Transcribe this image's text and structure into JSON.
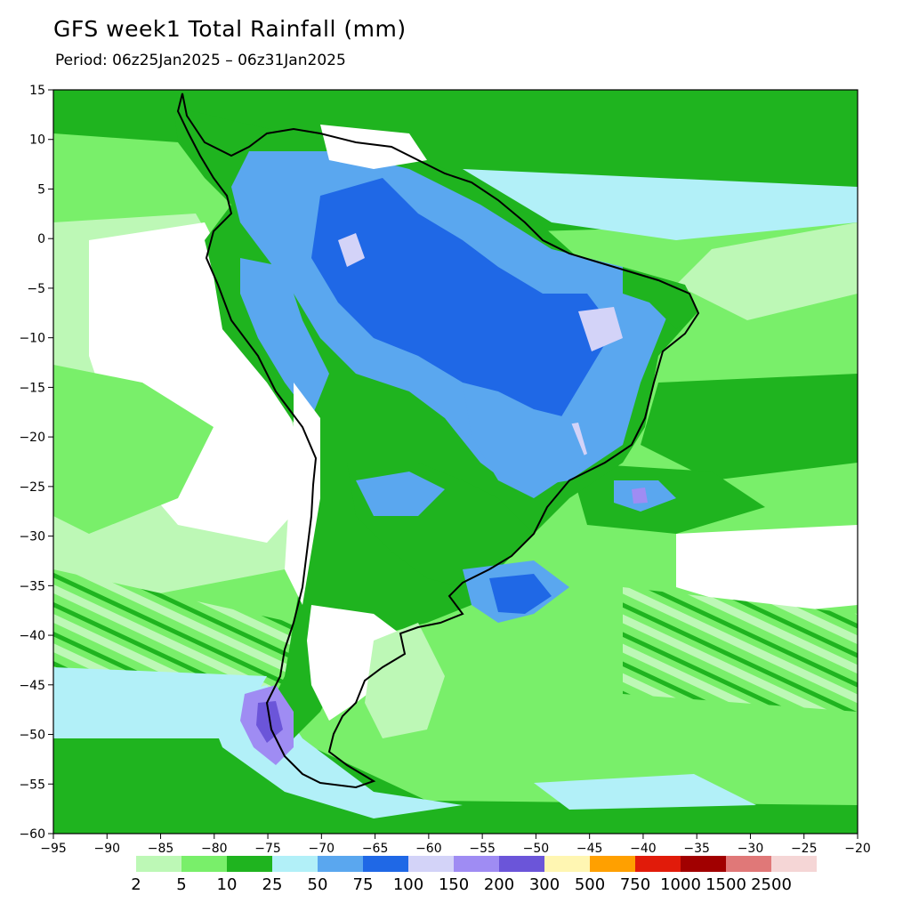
{
  "title": "GFS week1 Total Rainfall (mm)",
  "subtitle": "Period: 06z25Jan2025 – 06z31Jan2025",
  "map": {
    "lon_range": [
      -95,
      -20
    ],
    "lat_range": [
      -60,
      15
    ],
    "x_ticks": [
      -95,
      -90,
      -85,
      -80,
      -75,
      -70,
      -65,
      -60,
      -55,
      -50,
      -45,
      -40,
      -35,
      -30,
      -25,
      -20
    ],
    "y_ticks": [
      15,
      10,
      5,
      0,
      -5,
      -10,
      -15,
      -20,
      -25,
      -30,
      -35,
      -40,
      -45,
      -50,
      -55,
      -60
    ],
    "x_tick_labels": [
      "−95",
      "−90",
      "−85",
      "−80",
      "−75",
      "−70",
      "−65",
      "−60",
      "−55",
      "−50",
      "−45",
      "−40",
      "−35",
      "−30",
      "−25",
      "−20"
    ],
    "y_tick_labels": [
      "15",
      "10",
      "5",
      "0",
      "−5",
      "−10",
      "−15",
      "−20",
      "−25",
      "−30",
      "−35",
      "−40",
      "−45",
      "−50",
      "−55",
      "−60"
    ]
  },
  "legend": {
    "labels": [
      "2",
      "5",
      "10",
      "25",
      "50",
      "75",
      "100",
      "150",
      "200",
      "300",
      "500",
      "750",
      "1000",
      "1500",
      "2500"
    ],
    "colors": [
      "#bdf8b6",
      "#79ef6a",
      "#1fb41f",
      "#b2f0f8",
      "#5aa7ef",
      "#1f68e6",
      "#d3d3f8",
      "#9f8cf3",
      "#6b55d9",
      "#fff6b2",
      "#ffa000",
      "#e11b0a",
      "#a10000",
      "#e07878",
      "#f5d6d6"
    ]
  },
  "colors": {
    "land_outline": "#000000",
    "background": "#ffffff"
  }
}
